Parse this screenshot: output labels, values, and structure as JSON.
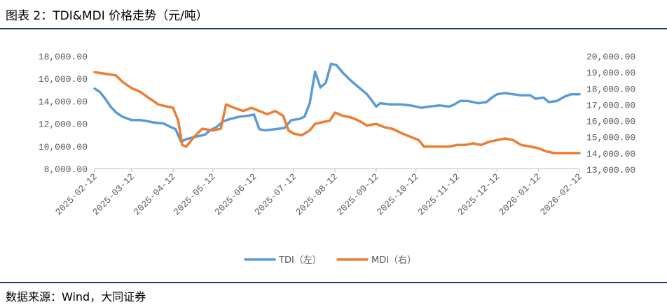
{
  "header": {
    "title": "图表 2：TDI&MDI 价格走势（元/吨）"
  },
  "footer": {
    "source": "数据来源：Wind，大同证券"
  },
  "chart_data": {
    "type": "line",
    "title": "TDI&MDI 价格走势（元/吨）",
    "x_tick_labels": [
      "2025-02-12",
      "2025-03-12",
      "2025-04-12",
      "2025-05-12",
      "2025-06-12",
      "2025-07-12",
      "2025-08-12",
      "2025-09-12",
      "2025-10-12",
      "2025-11-12",
      "2025-12-12",
      "2026-01-12",
      "2026-02-12"
    ],
    "y_left": {
      "min": 8000,
      "max": 18000,
      "ticks": [
        "8,000.00",
        "10,000.00",
        "12,000.00",
        "14,000.00",
        "16,000.00",
        "18,000.00"
      ]
    },
    "y_right": {
      "min": 13000,
      "max": 20000,
      "ticks": [
        "13,000.00",
        "14,000.00",
        "15,000.00",
        "16,000.00",
        "17,000.00",
        "18,000.00",
        "19,000.00",
        "20,000.00"
      ]
    },
    "colors": {
      "tdi": "#5b9bd5",
      "mdi": "#ed7d31"
    },
    "series": [
      {
        "name": "TDI（左）",
        "axis": "left",
        "points": [
          [
            "2025-02-12",
            15100
          ],
          [
            "2025-02-16",
            14800
          ],
          [
            "2025-02-20",
            14200
          ],
          [
            "2025-02-24",
            13500
          ],
          [
            "2025-02-28",
            13000
          ],
          [
            "2025-03-05",
            12600
          ],
          [
            "2025-03-12",
            12300
          ],
          [
            "2025-03-18",
            12300
          ],
          [
            "2025-03-22",
            12250
          ],
          [
            "2025-03-28",
            12100
          ],
          [
            "2025-04-05",
            12000
          ],
          [
            "2025-04-10",
            11700
          ],
          [
            "2025-04-14",
            11500
          ],
          [
            "2025-04-18",
            10400
          ],
          [
            "2025-04-22",
            10600
          ],
          [
            "2025-04-28",
            10800
          ],
          [
            "2025-05-06",
            11000
          ],
          [
            "2025-05-10",
            11400
          ],
          [
            "2025-05-15",
            11700
          ],
          [
            "2025-05-20",
            12200
          ],
          [
            "2025-05-25",
            12400
          ],
          [
            "2025-06-01",
            12600
          ],
          [
            "2025-06-08",
            12700
          ],
          [
            "2025-06-12",
            12800
          ],
          [
            "2025-06-16",
            11500
          ],
          [
            "2025-06-20",
            11400
          ],
          [
            "2025-06-28",
            11500
          ],
          [
            "2025-07-05",
            11600
          ],
          [
            "2025-07-10",
            12300
          ],
          [
            "2025-07-16",
            12400
          ],
          [
            "2025-07-20",
            12600
          ],
          [
            "2025-07-24",
            13800
          ],
          [
            "2025-07-28",
            16600
          ],
          [
            "2025-08-01",
            15200
          ],
          [
            "2025-08-05",
            15600
          ],
          [
            "2025-08-09",
            17300
          ],
          [
            "2025-08-13",
            17200
          ],
          [
            "2025-08-18",
            16500
          ],
          [
            "2025-08-24",
            15800
          ],
          [
            "2025-08-30",
            15200
          ],
          [
            "2025-09-05",
            14600
          ],
          [
            "2025-09-09",
            14000
          ],
          [
            "2025-09-12",
            13500
          ],
          [
            "2025-09-15",
            13800
          ],
          [
            "2025-09-22",
            13700
          ],
          [
            "2025-09-30",
            13700
          ],
          [
            "2025-10-08",
            13600
          ],
          [
            "2025-10-12",
            13500
          ],
          [
            "2025-10-16",
            13400
          ],
          [
            "2025-10-22",
            13500
          ],
          [
            "2025-10-30",
            13600
          ],
          [
            "2025-11-06",
            13500
          ],
          [
            "2025-11-10",
            13700
          ],
          [
            "2025-11-14",
            14000
          ],
          [
            "2025-11-20",
            14000
          ],
          [
            "2025-11-28",
            13800
          ],
          [
            "2025-12-04",
            13900
          ],
          [
            "2025-12-08",
            14300
          ],
          [
            "2025-12-12",
            14600
          ],
          [
            "2025-12-18",
            14700
          ],
          [
            "2025-12-24",
            14600
          ],
          [
            "2025-12-30",
            14500
          ],
          [
            "2026-01-06",
            14500
          ],
          [
            "2026-01-10",
            14200
          ],
          [
            "2026-01-16",
            14300
          ],
          [
            "2026-01-20",
            13900
          ],
          [
            "2026-01-26",
            14000
          ],
          [
            "2026-02-01",
            14400
          ],
          [
            "2026-02-06",
            14600
          ],
          [
            "2026-02-12",
            14600
          ]
        ]
      },
      {
        "name": "MDI（右）",
        "axis": "right",
        "points": [
          [
            "2025-02-12",
            19000
          ],
          [
            "2025-02-20",
            18900
          ],
          [
            "2025-02-28",
            18800
          ],
          [
            "2025-03-05",
            18400
          ],
          [
            "2025-03-12",
            18000
          ],
          [
            "2025-03-18",
            17800
          ],
          [
            "2025-03-25",
            17400
          ],
          [
            "2025-04-01",
            17000
          ],
          [
            "2025-04-06",
            16900
          ],
          [
            "2025-04-12",
            16800
          ],
          [
            "2025-04-16",
            16000
          ],
          [
            "2025-04-19",
            14500
          ],
          [
            "2025-04-22",
            14400
          ],
          [
            "2025-04-28",
            15000
          ],
          [
            "2025-05-04",
            15500
          ],
          [
            "2025-05-12",
            15400
          ],
          [
            "2025-05-18",
            15500
          ],
          [
            "2025-05-22",
            17000
          ],
          [
            "2025-05-28",
            16800
          ],
          [
            "2025-06-04",
            16600
          ],
          [
            "2025-06-10",
            16800
          ],
          [
            "2025-06-16",
            16600
          ],
          [
            "2025-06-22",
            16400
          ],
          [
            "2025-06-28",
            16600
          ],
          [
            "2025-07-04",
            16300
          ],
          [
            "2025-07-08",
            15400
          ],
          [
            "2025-07-12",
            15200
          ],
          [
            "2025-07-18",
            15100
          ],
          [
            "2025-07-24",
            15400
          ],
          [
            "2025-07-28",
            15800
          ],
          [
            "2025-08-02",
            15900
          ],
          [
            "2025-08-08",
            16000
          ],
          [
            "2025-08-12",
            16500
          ],
          [
            "2025-08-18",
            16300
          ],
          [
            "2025-08-24",
            16200
          ],
          [
            "2025-08-30",
            16000
          ],
          [
            "2025-09-05",
            15700
          ],
          [
            "2025-09-12",
            15800
          ],
          [
            "2025-09-18",
            15600
          ],
          [
            "2025-09-24",
            15500
          ],
          [
            "2025-10-02",
            15200
          ],
          [
            "2025-10-08",
            15000
          ],
          [
            "2025-10-14",
            14800
          ],
          [
            "2025-10-18",
            14400
          ],
          [
            "2025-10-24",
            14400
          ],
          [
            "2025-10-30",
            14400
          ],
          [
            "2025-11-06",
            14400
          ],
          [
            "2025-11-12",
            14500
          ],
          [
            "2025-11-18",
            14500
          ],
          [
            "2025-11-24",
            14600
          ],
          [
            "2025-11-30",
            14500
          ],
          [
            "2025-12-06",
            14700
          ],
          [
            "2025-12-12",
            14800
          ],
          [
            "2025-12-18",
            14900
          ],
          [
            "2025-12-24",
            14800
          ],
          [
            "2025-12-30",
            14500
          ],
          [
            "2026-01-06",
            14400
          ],
          [
            "2026-01-12",
            14300
          ],
          [
            "2026-01-18",
            14100
          ],
          [
            "2026-01-24",
            14000
          ],
          [
            "2026-02-01",
            14000
          ],
          [
            "2026-02-06",
            14000
          ],
          [
            "2026-02-12",
            14000
          ]
        ]
      }
    ],
    "legend": [
      "TDI（左）",
      "MDI（右）"
    ],
    "legend_position": "bottom"
  }
}
